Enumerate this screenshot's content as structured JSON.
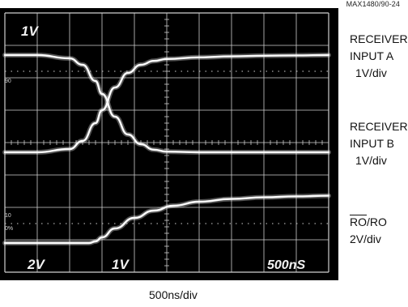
{
  "figure_id": "MAX1480/90-24",
  "screen_text": {
    "top_left": "1V",
    "bottom_ch1": "2V",
    "bottom_ch2": "1V",
    "timebase": "500nS"
  },
  "marker_text": {
    "m_90": "90",
    "m_10": "10",
    "m_0": "0%"
  },
  "labels": {
    "receiver_a": [
      "RECEIVER",
      "INPUT A",
      "1V/div"
    ],
    "receiver_b": [
      "RECEIVER",
      "INPUT B",
      "1V/div"
    ],
    "ro_bar": "RO",
    "ro_rest": "/RO",
    "ro_scale": "2V/div"
  },
  "x_caption": "500ns/div",
  "colors": {
    "screen": "#000000",
    "grid": "#cfcfcf",
    "trace": "#ececec"
  },
  "chart_data": {
    "type": "line",
    "x_unit": "ns",
    "x_div": 500,
    "xlim": [
      0,
      5000
    ],
    "series": [
      {
        "name": "RECEIVER INPUT A",
        "x": [
          0,
          500,
          1000,
          1200,
          1400,
          1500,
          1700,
          1900,
          2100,
          2300,
          2500,
          3000,
          3500,
          4000,
          4500,
          5000
        ],
        "y": [
          3.0,
          3.0,
          2.9,
          2.7,
          2.2,
          1.8,
          1.1,
          0.55,
          0.25,
          0.08,
          0.02,
          0.0,
          0.0,
          0.0,
          0.0,
          0.0
        ]
      },
      {
        "name": "RECEIVER INPUT B",
        "x": [
          0,
          500,
          1000,
          1200,
          1400,
          1500,
          1700,
          1900,
          2100,
          2300,
          2500,
          3000,
          3500,
          4000,
          4500,
          5000
        ],
        "y": [
          0.0,
          0.0,
          0.1,
          0.35,
          0.9,
          1.3,
          2.0,
          2.45,
          2.7,
          2.82,
          2.88,
          2.93,
          2.96,
          2.98,
          2.99,
          3.0
        ]
      },
      {
        "name": "RO/RO",
        "x": [
          0,
          500,
          1000,
          1300,
          1400,
          1500,
          1700,
          2000,
          2300,
          2600,
          3000,
          3500,
          4000,
          4500,
          5000
        ],
        "y": [
          0.0,
          0.0,
          0.0,
          0.0,
          0.1,
          0.35,
          0.9,
          1.55,
          2.0,
          2.3,
          2.55,
          2.72,
          2.82,
          2.88,
          2.92
        ]
      }
    ]
  }
}
